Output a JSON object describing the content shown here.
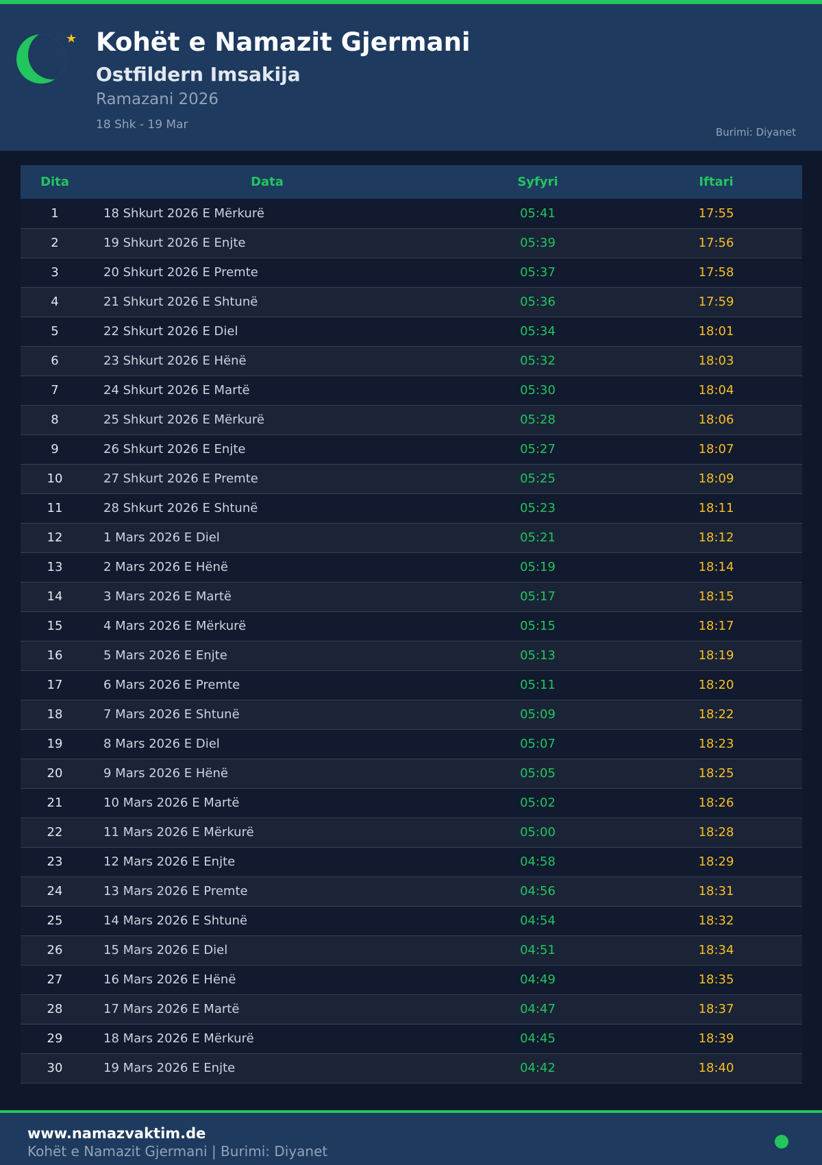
{
  "header": {
    "title": "Kohët e Namazit Gjermani",
    "subtitle": "Ostfildern Imsakija",
    "ramadan": "Ramazani 2026",
    "range": "18 Shk - 19 Mar",
    "source": "Burimi: Diyanet"
  },
  "colors": {
    "accent": "#22c55e",
    "iftar": "#fbbf24",
    "header_bg": "#1e3a5f",
    "page_bg": "#0f172a"
  },
  "table": {
    "headers": [
      "Dita",
      "Data",
      "Syfyri",
      "Iftari"
    ],
    "rows": [
      [
        "1",
        "18 Shkurt 2026 E Mërkurë",
        "05:41",
        "17:55"
      ],
      [
        "2",
        "19 Shkurt 2026 E Enjte",
        "05:39",
        "17:56"
      ],
      [
        "3",
        "20 Shkurt 2026 E Premte",
        "05:37",
        "17:58"
      ],
      [
        "4",
        "21 Shkurt 2026 E Shtunë",
        "05:36",
        "17:59"
      ],
      [
        "5",
        "22 Shkurt 2026 E Diel",
        "05:34",
        "18:01"
      ],
      [
        "6",
        "23 Shkurt 2026 E Hënë",
        "05:32",
        "18:03"
      ],
      [
        "7",
        "24 Shkurt 2026 E Martë",
        "05:30",
        "18:04"
      ],
      [
        "8",
        "25 Shkurt 2026 E Mërkurë",
        "05:28",
        "18:06"
      ],
      [
        "9",
        "26 Shkurt 2026 E Enjte",
        "05:27",
        "18:07"
      ],
      [
        "10",
        "27 Shkurt 2026 E Premte",
        "05:25",
        "18:09"
      ],
      [
        "11",
        "28 Shkurt 2026 E Shtunë",
        "05:23",
        "18:11"
      ],
      [
        "12",
        "1 Mars 2026 E Diel",
        "05:21",
        "18:12"
      ],
      [
        "13",
        "2 Mars 2026 E Hënë",
        "05:19",
        "18:14"
      ],
      [
        "14",
        "3 Mars 2026 E Martë",
        "05:17",
        "18:15"
      ],
      [
        "15",
        "4 Mars 2026 E Mërkurë",
        "05:15",
        "18:17"
      ],
      [
        "16",
        "5 Mars 2026 E Enjte",
        "05:13",
        "18:19"
      ],
      [
        "17",
        "6 Mars 2026 E Premte",
        "05:11",
        "18:20"
      ],
      [
        "18",
        "7 Mars 2026 E Shtunë",
        "05:09",
        "18:22"
      ],
      [
        "19",
        "8 Mars 2026 E Diel",
        "05:07",
        "18:23"
      ],
      [
        "20",
        "9 Mars 2026 E Hënë",
        "05:05",
        "18:25"
      ],
      [
        "21",
        "10 Mars 2026 E Martë",
        "05:02",
        "18:26"
      ],
      [
        "22",
        "11 Mars 2026 E Mërkurë",
        "05:00",
        "18:28"
      ],
      [
        "23",
        "12 Mars 2026 E Enjte",
        "04:58",
        "18:29"
      ],
      [
        "24",
        "13 Mars 2026 E Premte",
        "04:56",
        "18:31"
      ],
      [
        "25",
        "14 Mars 2026 E Shtunë",
        "04:54",
        "18:32"
      ],
      [
        "26",
        "15 Mars 2026 E Diel",
        "04:51",
        "18:34"
      ],
      [
        "27",
        "16 Mars 2026 E Hënë",
        "04:49",
        "18:35"
      ],
      [
        "28",
        "17 Mars 2026 E Martë",
        "04:47",
        "18:37"
      ],
      [
        "29",
        "18 Mars 2026 E Mërkurë",
        "04:45",
        "18:39"
      ],
      [
        "30",
        "19 Mars 2026 E Enjte",
        "04:42",
        "18:40"
      ]
    ]
  },
  "footer": {
    "site": "www.namazvaktim.de",
    "text": "Kohët e Namazit Gjermani | Burimi: Diyanet"
  }
}
